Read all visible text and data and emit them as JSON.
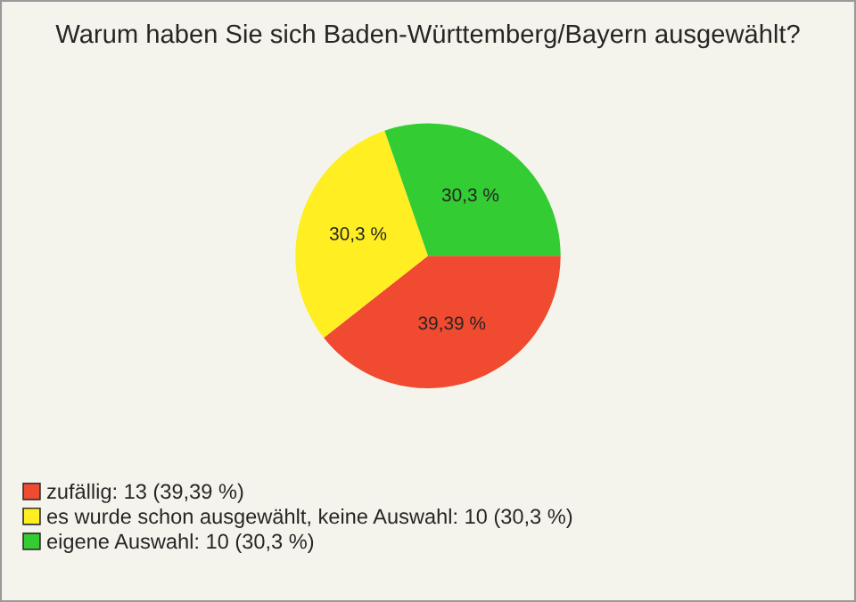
{
  "chart_data": {
    "type": "pie",
    "title": "Warum haben Sie sich Baden-Württemberg/Bayern ausgewählt?",
    "categories": [
      "zufällig: 13 (39,39 %)",
      "es wurde schon ausgewählt, keine Auswahl: 10 (30,3 %)",
      "eigene Auswahl: 10 (30,3 %)"
    ],
    "values": [
      39.39,
      30.3,
      30.3
    ],
    "value_labels": [
      "39,39 %",
      "30,3 %",
      "30,3 %"
    ],
    "colors": [
      "#f04a30",
      "#ffee22",
      "#33cc33"
    ],
    "legend": "bottom left"
  }
}
